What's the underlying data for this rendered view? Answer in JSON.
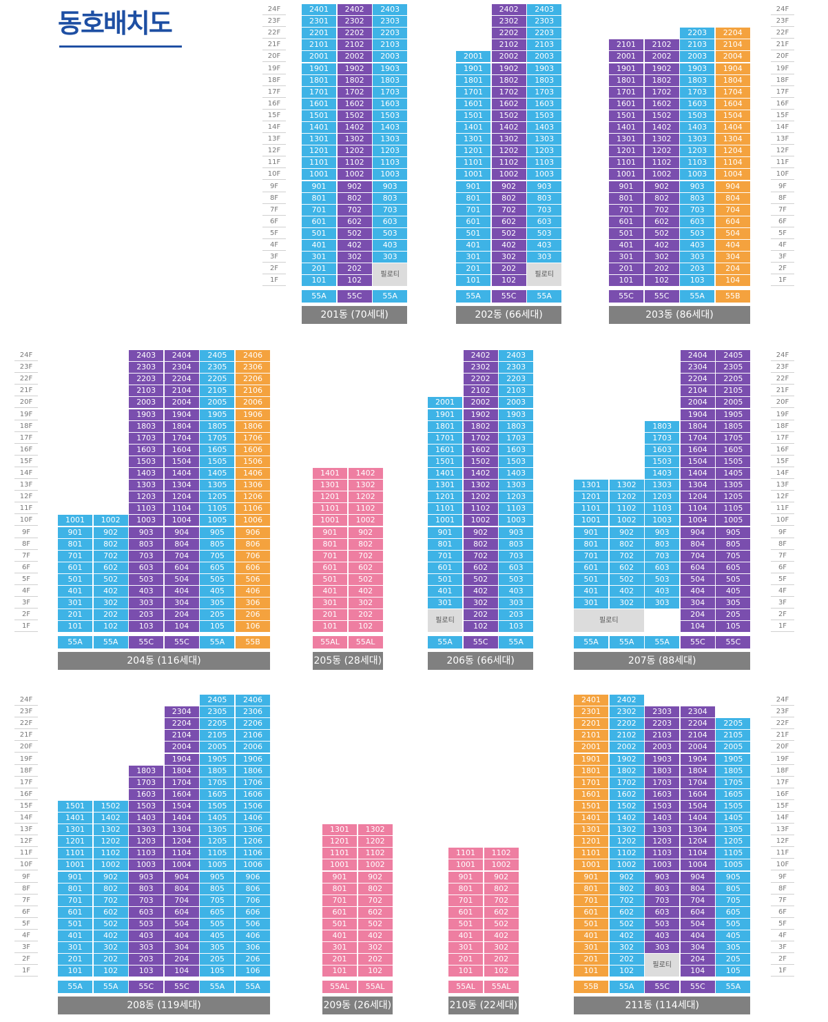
{
  "page": {
    "title": "동호배치도",
    "pilotis_label": "필로티"
  },
  "floor_labels": [
    "24F",
    "23F",
    "22F",
    "21F",
    "20F",
    "19F",
    "18F",
    "17F",
    "16F",
    "15F",
    "14F",
    "13F",
    "12F",
    "11F",
    "10F",
    "9F",
    "8F",
    "7F",
    "6F",
    "5F",
    "4F",
    "3F",
    "2F",
    "1F"
  ],
  "colors": {
    "blue": "#3eb3e6",
    "purple": "#7a4eae",
    "orange": "#f4a23e",
    "pink": "#ee7ea1",
    "pilotis": "#dcdcdc",
    "label_bg": "#808080",
    "title": "#1e4fa3"
  },
  "buildings": [
    {
      "id": "201",
      "label": "201동 (70세대)",
      "lines": [
        {
          "type": "55A",
          "color": "blue",
          "top": 24,
          "bottom": 1
        },
        {
          "type": "55C",
          "color": "purple",
          "top": 24,
          "bottom": 1
        },
        {
          "type": "55A",
          "color": "blue",
          "top": 24,
          "bottom": 3,
          "pilotis": true
        }
      ]
    },
    {
      "id": "202",
      "label": "202동 (66세대)",
      "lines": [
        {
          "type": "55A",
          "color": "blue",
          "top": 20,
          "bottom": 1
        },
        {
          "type": "55C",
          "color": "purple",
          "top": 24,
          "bottom": 1
        },
        {
          "type": "55A",
          "color": "blue",
          "top": 24,
          "bottom": 3,
          "pilotis": true
        }
      ]
    },
    {
      "id": "203",
      "label": "203동 (86세대)",
      "lines": [
        {
          "type": "55C",
          "color": "purple",
          "top": 21,
          "bottom": 1
        },
        {
          "type": "55C",
          "color": "purple",
          "top": 21,
          "bottom": 1
        },
        {
          "type": "55A",
          "color": "blue",
          "top": 22,
          "bottom": 1
        },
        {
          "type": "55B",
          "color": "orange",
          "top": 22,
          "bottom": 1
        }
      ]
    },
    {
      "id": "204",
      "label": "204동 (116세대)",
      "lines": [
        {
          "type": "55A",
          "color": "blue",
          "top": 10,
          "bottom": 1
        },
        {
          "type": "55A",
          "color": "blue",
          "top": 10,
          "bottom": 1
        },
        {
          "type": "55C",
          "color": "purple",
          "top": 24,
          "bottom": 1
        },
        {
          "type": "55C",
          "color": "purple",
          "top": 24,
          "bottom": 1
        },
        {
          "type": "55A",
          "color": "blue",
          "top": 24,
          "bottom": 1
        },
        {
          "type": "55B",
          "color": "orange",
          "top": 24,
          "bottom": 1
        }
      ]
    },
    {
      "id": "205",
      "label": "205동 (28세대)",
      "lines": [
        {
          "type": "55AL",
          "color": "pink",
          "top": 14,
          "bottom": 1
        },
        {
          "type": "55AL",
          "color": "pink",
          "top": 14,
          "bottom": 1
        }
      ]
    },
    {
      "id": "206",
      "label": "206동 (66세대)",
      "lines": [
        {
          "type": "55A",
          "color": "blue",
          "top": 20,
          "bottom": 3,
          "pilotis": true
        },
        {
          "type": "55C",
          "color": "purple",
          "top": 24,
          "bottom": 1
        },
        {
          "type": "55A",
          "color": "blue",
          "top": 24,
          "bottom": 1
        }
      ]
    },
    {
      "id": "207",
      "label": "207동 (88세대)",
      "lines": [
        {
          "type": "55A",
          "color": "blue",
          "top": 13,
          "bottom": 1,
          "skip": [
            2
          ]
        },
        {
          "type": "55A",
          "color": "blue",
          "top": 13,
          "bottom": 3,
          "pilotis_wide": true
        },
        {
          "type": "55A",
          "color": "blue",
          "top": 18,
          "bottom": 3
        },
        {
          "type": "55C",
          "color": "purple",
          "top": 24,
          "bottom": 1
        },
        {
          "type": "55C",
          "color": "purple",
          "top": 24,
          "bottom": 1
        }
      ]
    },
    {
      "id": "208",
      "label": "208동 (119세대)",
      "lines": [
        {
          "type": "55A",
          "color": "blue",
          "top": 15,
          "bottom": 1
        },
        {
          "type": "55A",
          "color": "blue",
          "top": 15,
          "bottom": 1
        },
        {
          "type": "55C",
          "color": "purple",
          "top": 18,
          "bottom": 1
        },
        {
          "type": "55C",
          "color": "purple",
          "top": 23,
          "bottom": 1
        },
        {
          "type": "55A",
          "color": "blue",
          "top": 24,
          "bottom": 1
        },
        {
          "type": "55A",
          "color": "blue",
          "top": 24,
          "bottom": 1
        }
      ]
    },
    {
      "id": "209",
      "label": "209동 (26세대)",
      "lines": [
        {
          "type": "55AL",
          "color": "pink",
          "top": 13,
          "bottom": 1
        },
        {
          "type": "55AL",
          "color": "pink",
          "top": 13,
          "bottom": 1
        }
      ]
    },
    {
      "id": "210",
      "label": "210동 (22세대)",
      "lines": [
        {
          "type": "55AL",
          "color": "pink",
          "top": 11,
          "bottom": 1
        },
        {
          "type": "55AL",
          "color": "pink",
          "top": 11,
          "bottom": 1
        }
      ]
    },
    {
      "id": "211",
      "label": "211동 (114세대)",
      "lines": [
        {
          "type": "55B",
          "color": "orange",
          "top": 24,
          "bottom": 1
        },
        {
          "type": "55A",
          "color": "blue",
          "top": 24,
          "bottom": 1
        },
        {
          "type": "55C",
          "color": "purple",
          "top": 23,
          "bottom": 3,
          "pilotis": true
        },
        {
          "type": "55C",
          "color": "purple",
          "top": 23,
          "bottom": 1
        },
        {
          "type": "55A",
          "color": "blue",
          "top": 22,
          "bottom": 1
        }
      ]
    }
  ]
}
